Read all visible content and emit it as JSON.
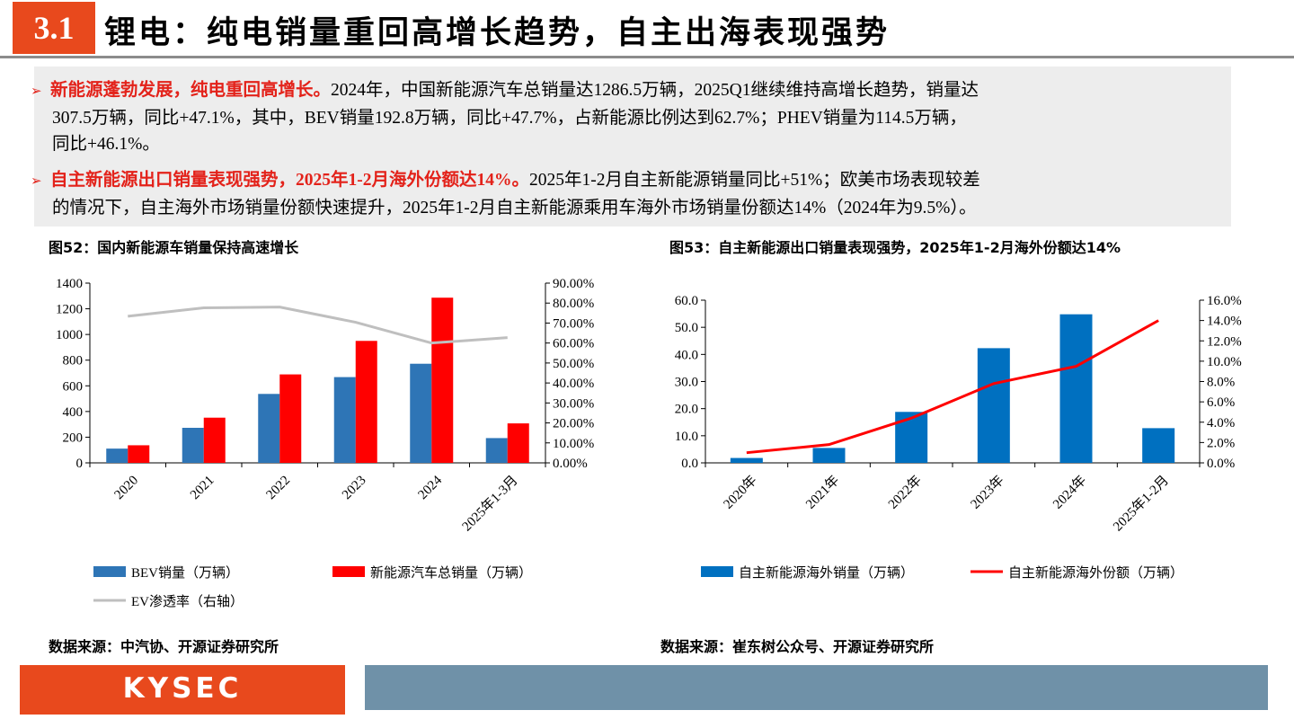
{
  "header": {
    "section": "3.1",
    "title": "锂电：纯电销量重回高增长趋势，自主出海表现强势"
  },
  "bullets": [
    {
      "bold": "新能源蓬勃发展，纯电重回高增长。",
      "line1": "2024年，中国新能源汽车总销量达1286.5万辆，2025Q1继续维持高增长趋势，销量达",
      "line2": "307.5万辆，同比+47.1%，其中，BEV销量192.8万辆，同比+47.7%，占新能源比例达到62.7%；PHEV销量为114.5万辆，",
      "line3": "同比+46.1%。"
    },
    {
      "bold": "自主新能源出口销量表现强势，2025年1-2月海外份额达14%。",
      "line1": "2025年1-2月自主新能源销量同比+51%；欧美市场表现较差",
      "line2": "的情况下，自主海外市场销量份额快速提升，2025年1-2月自主新能源乘用车海外市场销量份额达14%（2024年为9.5%）。"
    }
  ],
  "figures": {
    "left": {
      "title": "图52：国内新能源车销量保持高速增长",
      "source": "数据来源：中汽协、开源证券研究所"
    },
    "right": {
      "title": "图53：自主新能源出口销量表现强势，2025年1-2月海外份额达14%",
      "source": "数据来源：崔东树公众号、开源证券研究所"
    }
  },
  "chart_data": [
    {
      "type": "bar",
      "categories": [
        "2020",
        "2021",
        "2022",
        "2023",
        "2024",
        "2025年1-3月"
      ],
      "series": [
        {
          "name": "BEV销量（万辆）",
          "type": "bar",
          "color": "#2e75b6",
          "values": [
            111,
            273,
            537,
            668,
            772,
            193
          ]
        },
        {
          "name": "新能源汽车总销量（万辆）",
          "type": "bar",
          "color": "#ff0000",
          "values": [
            137,
            352,
            689,
            950,
            1286.5,
            307.5
          ]
        },
        {
          "name": "EV渗透率（右轴）",
          "type": "line",
          "axis": "right",
          "color": "#bfbfbf",
          "values": [
            73.4,
            77.6,
            78.0,
            70.4,
            60.0,
            62.7
          ]
        }
      ],
      "yticks_left": [
        "0",
        "200",
        "400",
        "600",
        "800",
        "1000",
        "1200",
        "1400"
      ],
      "yticks_right": [
        "0.00%",
        "10.00%",
        "20.00%",
        "30.00%",
        "40.00%",
        "50.00%",
        "60.00%",
        "70.00%",
        "80.00%",
        "90.00%"
      ],
      "ylim_left": [
        0,
        1400
      ],
      "ylim_right": [
        0,
        90
      ],
      "grid": false,
      "legend": "bottom"
    },
    {
      "type": "bar",
      "categories": [
        "2020年",
        "2021年",
        "2022年",
        "2023年",
        "2024年",
        "2025年1-2月"
      ],
      "series": [
        {
          "name": "自主新能源海外销量（万辆）",
          "type": "bar",
          "color": "#0070c0",
          "values": [
            1.8,
            5.5,
            18.8,
            42.3,
            54.8,
            12.8
          ]
        },
        {
          "name": "自主新能源海外份额（万辆）",
          "type": "line",
          "axis": "right",
          "color": "#ff0000",
          "values": [
            1.0,
            1.8,
            4.4,
            7.8,
            9.5,
            14.0
          ]
        }
      ],
      "yticks_left": [
        "0.0",
        "10.0",
        "20.0",
        "30.0",
        "40.0",
        "50.0",
        "60.0"
      ],
      "yticks_right": [
        "0.0%",
        "2.0%",
        "4.0%",
        "6.0%",
        "8.0%",
        "10.0%",
        "12.0%",
        "14.0%",
        "16.0%"
      ],
      "ylim_left": [
        0,
        60
      ],
      "ylim_right": [
        0,
        16
      ],
      "grid": false,
      "legend": "bottom"
    }
  ],
  "footer": {
    "logo": "KYSEC"
  }
}
